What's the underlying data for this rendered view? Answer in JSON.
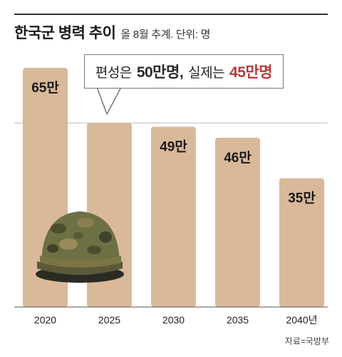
{
  "header": {
    "title": "한국군 병력 추이",
    "subtitle": "올 8월 추계. 단위: 명"
  },
  "callout": {
    "prefix": "편성은",
    "planned_value": "50만명,",
    "middle": "실제는",
    "actual_value": "45만명"
  },
  "source": "자료=국방부",
  "icons": {
    "illustration": "military-helmet-icon"
  },
  "colors": {
    "bar": "#d9b99a",
    "accent": "#b23a3a",
    "baseline": "#555555",
    "reference_line": "#bbbbbb"
  },
  "chart_data": {
    "type": "bar",
    "title": "한국군 병력 추이",
    "subtitle": "올 8월 추계. 단위: 명",
    "categories": [
      "2020",
      "2025",
      "2030",
      "2035",
      "2040년"
    ],
    "values": [
      65,
      50,
      49,
      46,
      35
    ],
    "labels": [
      "65만",
      "50만",
      "49만",
      "46만",
      "35만"
    ],
    "unit": "만",
    "ylim": [
      0,
      70
    ],
    "grid": false,
    "reference_line": 50,
    "show_label": [
      true,
      false,
      true,
      true,
      true
    ]
  }
}
